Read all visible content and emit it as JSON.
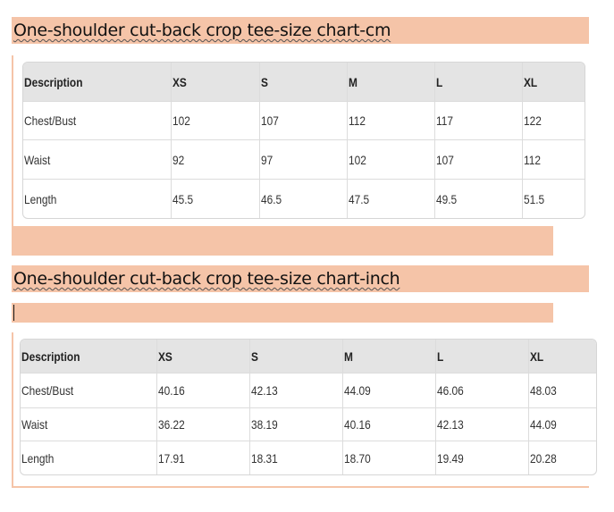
{
  "colors": {
    "highlight": "#f5c4a8",
    "header_bg": "#e4e4e4"
  },
  "sections": [
    {
      "title": "One-shoulder cut-back crop tee-size chart-cm",
      "headers": [
        "Description",
        "XS",
        "S",
        "M",
        "L",
        "XL"
      ],
      "rows": [
        [
          "Chest/Bust",
          "102",
          "107",
          "112",
          "117",
          "122"
        ],
        [
          "Waist",
          "92",
          "97",
          "102",
          "107",
          "112"
        ],
        [
          "Length",
          "45.5",
          "46.5",
          "47.5",
          "49.5",
          "51.5"
        ]
      ]
    },
    {
      "title": "One-shoulder cut-back crop tee-size chart-inch",
      "headers": [
        "Description",
        "XS",
        "S",
        "M",
        "L",
        "XL"
      ],
      "rows": [
        [
          "Chest/Bust",
          "40.16",
          "42.13",
          "44.09",
          "46.06",
          "48.03"
        ],
        [
          "Waist",
          "36.22",
          "38.19",
          "40.16",
          "42.13",
          "44.09"
        ],
        [
          "Length",
          "17.91",
          "18.31",
          "18.70",
          "19.49",
          "20.28"
        ]
      ]
    }
  ]
}
